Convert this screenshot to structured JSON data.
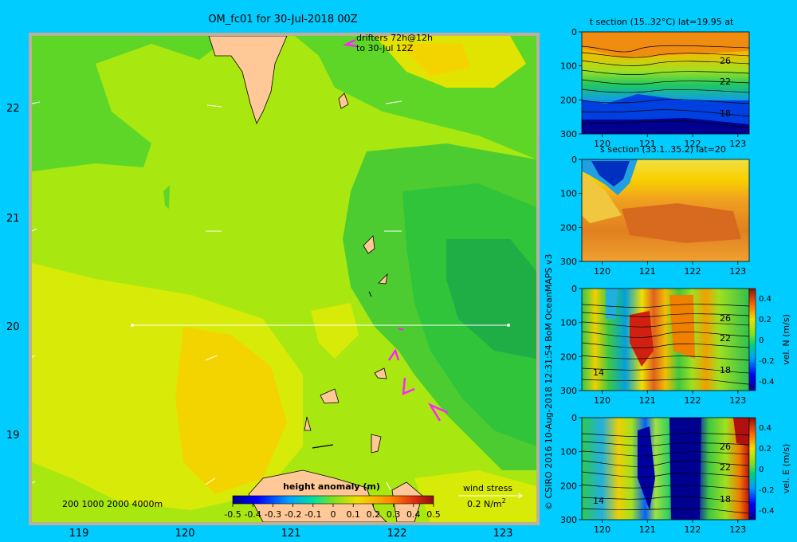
{
  "map": {
    "title": "OM_fc01 for 30-Jul-2018 00Z",
    "drifters_line1": "drifters 72h@12h",
    "drifters_line2": "to 30-Jul 12Z",
    "lat_labels": [
      "22",
      "21",
      "20",
      "19"
    ],
    "lon_labels": [
      "119",
      "120",
      "121",
      "122",
      "123"
    ],
    "depth_legend": "200  1000  2000  4000m",
    "colorbar_title": "height anomaly (m)",
    "colorbar_ticks": [
      "-0.5",
      "-0.4",
      "-0.3",
      "-0.2",
      "-0.1",
      "0",
      "0.1",
      "0.2",
      "0.3",
      "0.4",
      "0.5"
    ],
    "wind_label": "wind stress",
    "wind_scale": "0.2 N/m",
    "wind_scale_sup": "2"
  },
  "credit": "© CSIRO 2016   10-Aug-2018 12:31:54 BoM OceanMAPS v3",
  "panels": [
    {
      "title": "t section (15..32°C) lat=19.95 at",
      "y_ticks": [
        "0",
        "100",
        "200",
        "300"
      ],
      "x_ticks": [
        "120",
        "121",
        "122",
        "123"
      ],
      "contour_labels": [
        "26",
        "22",
        "18"
      ]
    },
    {
      "title": "s section (33.1..35.2) lat=20",
      "y_ticks": [
        "0",
        "100",
        "200",
        "300"
      ],
      "x_ticks": [
        "120",
        "121",
        "122",
        "123"
      ],
      "contour_labels": []
    },
    {
      "title": "",
      "y_ticks": [
        "0",
        "100",
        "200",
        "300"
      ],
      "x_ticks": [
        "120",
        "121",
        "122",
        "123"
      ],
      "contour_labels": [
        "26",
        "22",
        "18",
        "14"
      ],
      "cbar_ticks": [
        "0.4",
        "0.2",
        "0",
        "-0.2",
        "-0.4"
      ],
      "cbar_label": "vel. N (m/s)"
    },
    {
      "title": "",
      "y_ticks": [
        "0",
        "100",
        "200",
        "300"
      ],
      "x_ticks": [
        "120",
        "121",
        "122",
        "123"
      ],
      "contour_labels": [
        "26",
        "22",
        "18",
        "14"
      ],
      "cbar_ticks": [
        "0.4",
        "0.2",
        "0",
        "-0.2",
        "-0.4"
      ],
      "cbar_label": "vel. E (m/s)"
    }
  ],
  "colors": {
    "background": "#00ccff",
    "base_field": "#a8e810",
    "positive_field": "#f4d400",
    "negative_field": "#2fc43a",
    "land": "#ffc896",
    "drifters": "#ff22ff"
  }
}
